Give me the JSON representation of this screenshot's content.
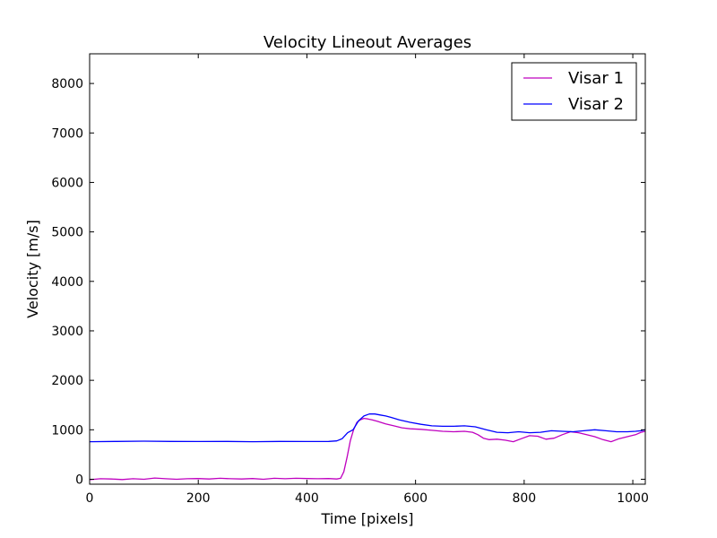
{
  "chart_data": {
    "type": "line",
    "title": "Velocity Lineout Averages",
    "xlabel": "Time [pixels]",
    "ylabel": "Velocity [m/s]",
    "xlim": [
      0,
      1023
    ],
    "ylim": [
      -100,
      8600
    ],
    "xticks": [
      0,
      200,
      400,
      600,
      800,
      1000
    ],
    "xtick_labels": [
      "0",
      "200",
      "400",
      "600",
      "800",
      "1000"
    ],
    "yticks": [
      0,
      1000,
      2000,
      3000,
      4000,
      5000,
      6000,
      7000,
      8000
    ],
    "ytick_labels": [
      "0",
      "1000",
      "2000",
      "3000",
      "4000",
      "5000",
      "6000",
      "7000",
      "8000"
    ],
    "grid": false,
    "legend_position": "top-right",
    "series": [
      {
        "name": "Visar 1",
        "color": "#bf00bf",
        "x": [
          0,
          20,
          40,
          60,
          80,
          100,
          120,
          140,
          160,
          180,
          200,
          220,
          240,
          260,
          280,
          300,
          320,
          340,
          360,
          380,
          400,
          420,
          440,
          455,
          462,
          468,
          474,
          480,
          486,
          492,
          498,
          505,
          512,
          520,
          530,
          545,
          560,
          575,
          590,
          610,
          630,
          650,
          670,
          690,
          705,
          715,
          725,
          735,
          750,
          765,
          780,
          795,
          810,
          825,
          840,
          855,
          870,
          885,
          900,
          915,
          930,
          945,
          960,
          975,
          990,
          1005,
          1015,
          1023
        ],
        "y": [
          -10,
          10,
          5,
          -5,
          10,
          0,
          25,
          10,
          0,
          10,
          15,
          5,
          20,
          10,
          5,
          15,
          0,
          20,
          10,
          20,
          15,
          10,
          15,
          5,
          20,
          150,
          450,
          780,
          1000,
          1150,
          1200,
          1230,
          1220,
          1200,
          1170,
          1120,
          1080,
          1040,
          1020,
          1010,
          990,
          970,
          960,
          970,
          950,
          900,
          830,
          800,
          810,
          790,
          760,
          820,
          880,
          870,
          810,
          830,
          900,
          960,
          940,
          900,
          860,
          800,
          760,
          820,
          860,
          900,
          950,
          970
        ]
      },
      {
        "name": "Visar 2",
        "color": "#0000ff",
        "x": [
          0,
          50,
          100,
          150,
          200,
          250,
          300,
          350,
          400,
          440,
          455,
          465,
          475,
          485,
          495,
          505,
          515,
          525,
          535,
          545,
          555,
          570,
          590,
          610,
          630,
          650,
          670,
          690,
          710,
          730,
          750,
          770,
          790,
          810,
          830,
          850,
          870,
          890,
          910,
          930,
          950,
          970,
          990,
          1005,
          1015,
          1023
        ],
        "y": [
          760,
          765,
          770,
          765,
          762,
          765,
          760,
          765,
          762,
          765,
          775,
          820,
          940,
          1000,
          1180,
          1280,
          1320,
          1320,
          1300,
          1280,
          1250,
          1200,
          1150,
          1110,
          1080,
          1070,
          1070,
          1080,
          1060,
          1000,
          950,
          940,
          960,
          940,
          950,
          980,
          970,
          960,
          980,
          1000,
          980,
          960,
          960,
          970,
          980,
          1000
        ]
      }
    ]
  }
}
